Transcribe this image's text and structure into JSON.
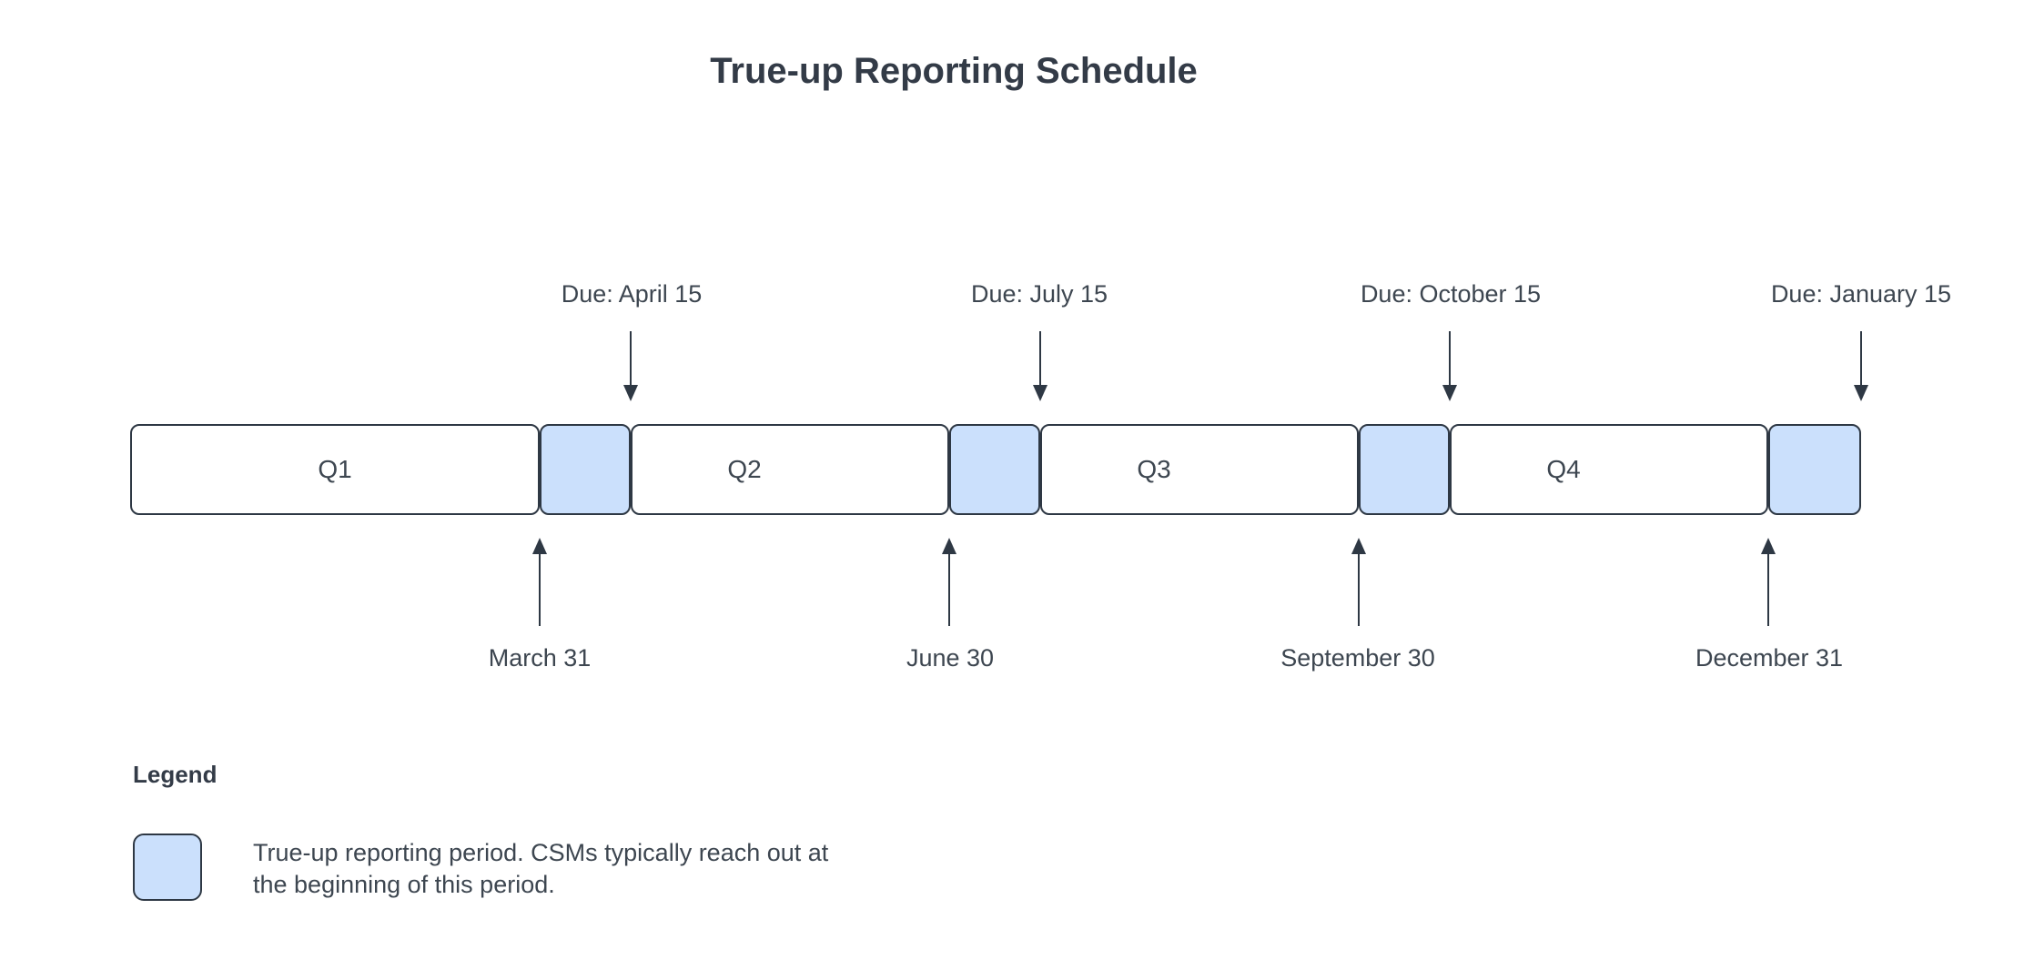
{
  "title": "True-up Reporting Schedule",
  "colors": {
    "ink": "#2e3844",
    "text": "#3d4650",
    "reporting_period_fill": "#cbe0fc",
    "background": "#ffffff"
  },
  "timeline": {
    "quarters": [
      {
        "label": "Q1"
      },
      {
        "label": "Q2"
      },
      {
        "label": "Q3"
      },
      {
        "label": "Q4"
      }
    ],
    "due_markers": [
      {
        "label": "Due: April 15"
      },
      {
        "label": "Due: July 15"
      },
      {
        "label": "Due: October 15"
      },
      {
        "label": "Due: January 15"
      }
    ],
    "quarter_end_markers": [
      {
        "label": "March 31"
      },
      {
        "label": "June 30"
      },
      {
        "label": "September 30"
      },
      {
        "label": "December 31"
      }
    ]
  },
  "legend": {
    "title": "Legend",
    "description_lines": [
      "True-up reporting period. CSMs typically reach out at",
      "the beginning of this period."
    ]
  }
}
